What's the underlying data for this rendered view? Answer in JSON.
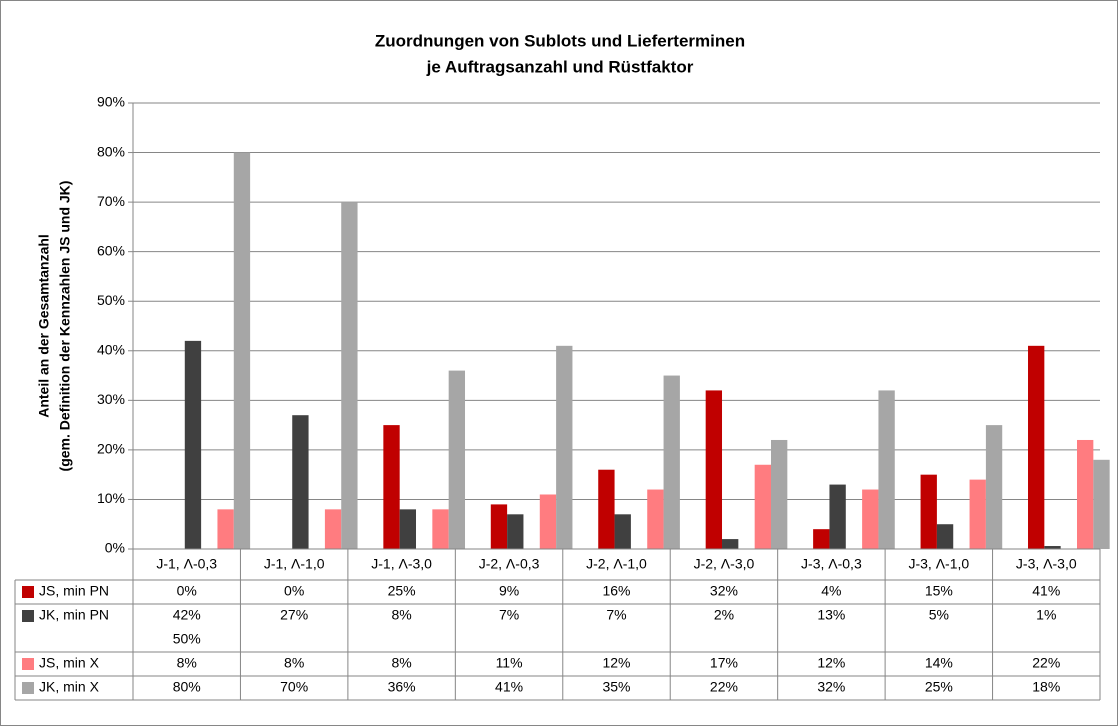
{
  "chart_data": {
    "type": "bar",
    "title": [
      "Zuordnungen von Sublots und Lieferterminen",
      "je Auftragsanzahl und Rüstfaktor"
    ],
    "ylabel": [
      "Anteil an der Gesamtanzahl",
      "(gem. Definition der Kennzahlen JS und JK)"
    ],
    "categories": [
      "J-1, Λ-0,3",
      "J-1, Λ-1,0",
      "J-1, Λ-3,0",
      "J-2, Λ-0,3",
      "J-2, Λ-1,0",
      "J-2, Λ-3,0",
      "J-3, Λ-0,3",
      "J-3, Λ-1,0",
      "J-3, Λ-3,0"
    ],
    "series": [
      {
        "name": "JS, min PN",
        "color": "#c00000",
        "values": [
          0,
          0,
          25,
          9,
          16,
          32,
          4,
          15,
          41
        ],
        "value_labels": [
          "0%",
          "0%",
          "25%",
          "9%",
          "16%",
          "32%",
          "4%",
          "15%",
          "41%"
        ]
      },
      {
        "name": "JK, min PN",
        "color": "#404040",
        "values": [
          42,
          27,
          8,
          7,
          7,
          2,
          13,
          5,
          0.6
        ],
        "value_labels": [
          "42%",
          "27%",
          "8%",
          "7%",
          "7%",
          "2%",
          "13%",
          "5%",
          "1%"
        ]
      },
      {
        "name": "JS, min X",
        "color": "#ff7c80",
        "values": [
          8,
          8,
          8,
          11,
          12,
          17,
          12,
          14,
          22
        ],
        "value_labels": [
          "8%",
          "8%",
          "8%",
          "11%",
          "12%",
          "17%",
          "12%",
          "14%",
          "22%"
        ]
      },
      {
        "name": "JK, min X",
        "color": "#a6a6a6",
        "values": [
          80,
          70,
          36,
          41,
          35,
          22,
          32,
          25,
          18
        ],
        "value_labels": [
          "80%",
          "70%",
          "36%",
          "41%",
          "35%",
          "22%",
          "32%",
          "25%",
          "18%"
        ]
      }
    ],
    "annotation": "50%",
    "ylim": [
      0,
      90
    ],
    "yticks": [
      {
        "value": 0,
        "label": "0%"
      },
      {
        "value": 10,
        "label": "10%"
      },
      {
        "value": 20,
        "label": "20%"
      },
      {
        "value": 30,
        "label": "30%"
      },
      {
        "value": 40,
        "label": "40%"
      },
      {
        "value": 50,
        "label": "50%"
      },
      {
        "value": 60,
        "label": "60%"
      },
      {
        "value": 70,
        "label": "70%"
      },
      {
        "value": 80,
        "label": "80%"
      },
      {
        "value": 90,
        "label": "90%"
      }
    ],
    "grid": true
  }
}
